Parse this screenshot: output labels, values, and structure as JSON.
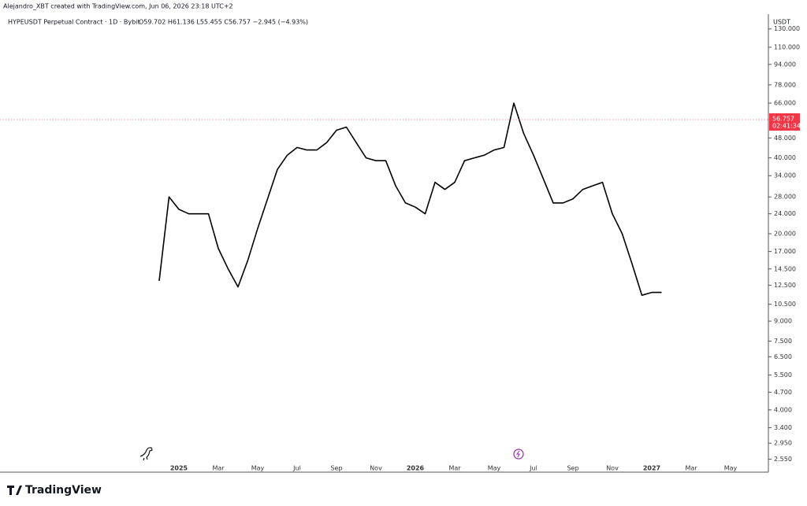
{
  "header": {
    "credit": "Alejandro_XBT created with TradingView.com, Jun 06, 2026 23:18 UTC+2",
    "brand": "TradingView"
  },
  "chart_data": {
    "type": "line",
    "title": "HYPEUSDT Perpetual Contract · 1D · Bybit",
    "ohlc_text": "O59.702 H61.136 L55.455 C56.757 −2.945 (−4.93%)",
    "currency": "USDT",
    "last_price": 56.757,
    "countdown": "02:41:34",
    "log_scale": true,
    "color": "#000000",
    "categories": [
      null,
      null,
      "2025",
      null,
      null,
      null,
      "Mar",
      null,
      null,
      null,
      "May",
      null,
      null,
      null,
      "Jul",
      null,
      null,
      null,
      "Sep",
      null,
      null,
      null,
      "Nov",
      null,
      null,
      null,
      "2026",
      null,
      null,
      null,
      "Mar",
      null,
      null,
      null,
      "May",
      null,
      null,
      null,
      "Jul",
      null,
      null,
      null,
      "Sep",
      null,
      null,
      null,
      "Nov",
      null,
      null,
      null,
      "2027",
      null,
      null,
      null,
      "Mar",
      null,
      null,
      null,
      "May",
      null
    ],
    "values": [
      13,
      28,
      25,
      24,
      24,
      24,
      17.5,
      14.5,
      12.3,
      15.7,
      21,
      27.5,
      36,
      41,
      44,
      43,
      43,
      46,
      51.5,
      53,
      46,
      40,
      39,
      39,
      31,
      26.5,
      25.5,
      24,
      32,
      30,
      32,
      39,
      40,
      41,
      43,
      44,
      66,
      50,
      41,
      33,
      26.5,
      26.5,
      27.5,
      30,
      31,
      32,
      24,
      20,
      15.2,
      11.4,
      11.7,
      11.7,
      null,
      null,
      null,
      null,
      null,
      null,
      null,
      null
    ],
    "ylim": [
      2.45,
      135
    ],
    "yticks": [
      {
        "value": 130,
        "label": "130.000"
      },
      {
        "value": 110,
        "label": "110.000"
      },
      {
        "value": 94,
        "label": "94.000"
      },
      {
        "value": 78,
        "label": "78.000"
      },
      {
        "value": 66,
        "label": "66.000"
      },
      {
        "value": 48,
        "label": "48.000"
      },
      {
        "value": 40,
        "label": "40.000"
      },
      {
        "value": 34,
        "label": "34.000"
      },
      {
        "value": 28,
        "label": "28.000"
      },
      {
        "value": 24,
        "label": "24.000"
      },
      {
        "value": 20,
        "label": "20.000"
      },
      {
        "value": 17,
        "label": "17.000"
      },
      {
        "value": 14.5,
        "label": "14.500"
      },
      {
        "value": 12.5,
        "label": "12.500"
      },
      {
        "value": 10.5,
        "label": "10.500"
      },
      {
        "value": 9,
        "label": "9.000"
      },
      {
        "value": 7.5,
        "label": "7.500"
      },
      {
        "value": 6.5,
        "label": "6.500"
      },
      {
        "value": 5.5,
        "label": "5.500"
      },
      {
        "value": 4.7,
        "label": "4.700"
      },
      {
        "value": 4,
        "label": "4.000"
      },
      {
        "value": 3.4,
        "label": "3.400"
      },
      {
        "value": 2.95,
        "label": "2.950"
      },
      {
        "value": 2.55,
        "label": "2.550"
      }
    ]
  }
}
